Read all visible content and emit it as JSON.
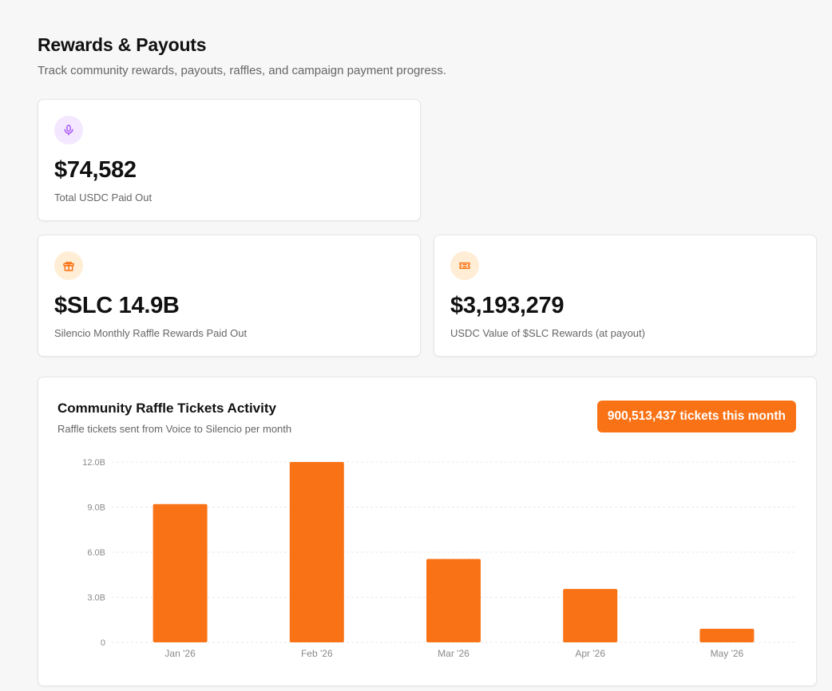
{
  "header": {
    "title": "Rewards & Payouts",
    "subtitle": "Track community rewards, payouts, raffles, and campaign payment progress."
  },
  "stats": [
    {
      "icon": "microphone-icon",
      "value": "$74,582",
      "label": "Total USDC Paid Out",
      "icon_bg": "#f3e8ff",
      "icon_color": "#a855f7"
    },
    {
      "icon": "gift-icon",
      "value": "$SLC 14.9B",
      "label": "Silencio Monthly Raffle Rewards Paid Out",
      "icon_bg": "#ffedd5",
      "icon_color": "#f97316"
    },
    {
      "icon": "ticket-icon",
      "value": "$3,193,279",
      "label": "USDC Value of $SLC Rewards (at payout)",
      "icon_bg": "#ffedd5",
      "icon_color": "#f97316"
    }
  ],
  "chart_panel": {
    "title": "Community Raffle Tickets Activity",
    "subtitle": "Raffle tickets sent from Voice to Silencio per month",
    "badge": "900,513,437 tickets this month"
  },
  "chart_data": {
    "type": "bar",
    "title": "Community Raffle Tickets Activity",
    "categories": [
      "Jan '26",
      "Feb '26",
      "Mar '26",
      "Apr '26",
      "May '26"
    ],
    "values": [
      9.2,
      12.0,
      5.55,
      3.55,
      0.9
    ],
    "unit": "B",
    "ylim": [
      0,
      12
    ],
    "yticks": [
      0,
      3,
      6,
      9,
      12
    ],
    "ytick_labels": [
      "0",
      "3.0B",
      "6.0B",
      "9.0B",
      "12.0B"
    ],
    "grid": true,
    "bar_color": "#f97316"
  }
}
